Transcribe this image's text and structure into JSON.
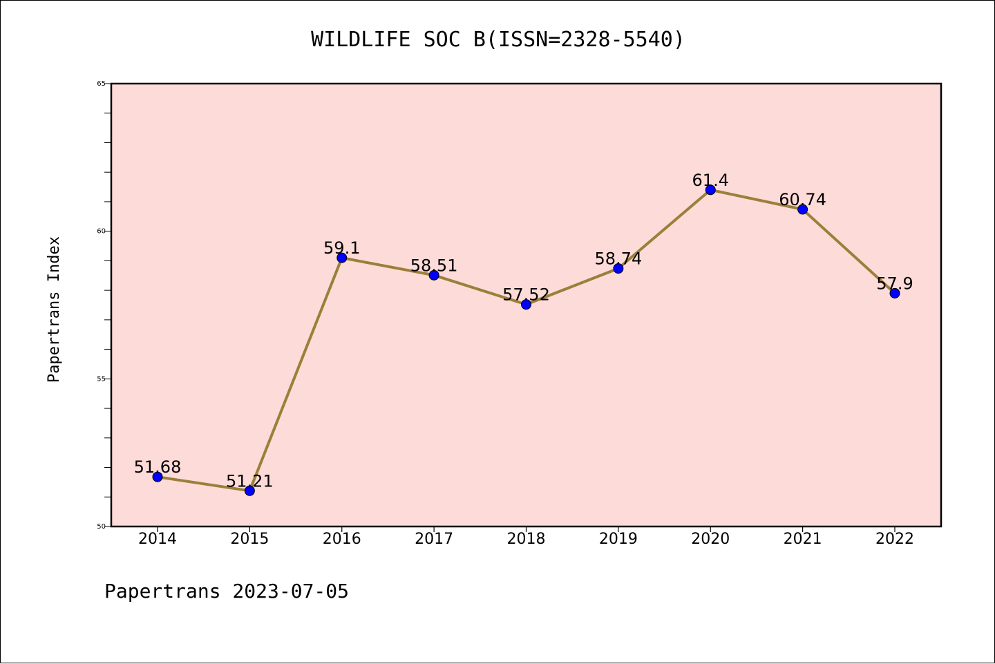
{
  "chart_data": {
    "type": "line",
    "title": "WILDLIFE SOC B(ISSN=2328-5540)",
    "xlabel": "",
    "ylabel": "Papertrans Index",
    "categories": [
      "2014",
      "2015",
      "2016",
      "2017",
      "2018",
      "2019",
      "2020",
      "2021",
      "2022"
    ],
    "values": [
      51.68,
      51.21,
      59.1,
      58.51,
      57.52,
      58.74,
      61.4,
      60.74,
      57.9
    ],
    "data_labels": [
      "51.68",
      "51.21",
      "59.1",
      "58.51",
      "57.52",
      "58.74",
      "61.4",
      "60.74",
      "57.9"
    ],
    "ylim": [
      50,
      65
    ],
    "yticks": [
      50,
      55,
      60,
      65
    ],
    "ytick_labels": [
      "50",
      "55",
      "60",
      "65"
    ],
    "grid": false,
    "legend": "none",
    "footer": "Papertrans 2023-07-05"
  },
  "colors": {
    "plot_background": "#fddbd8",
    "line": "#9b7f3a",
    "marker": "#0000ff",
    "marker_edge": "#000000"
  }
}
